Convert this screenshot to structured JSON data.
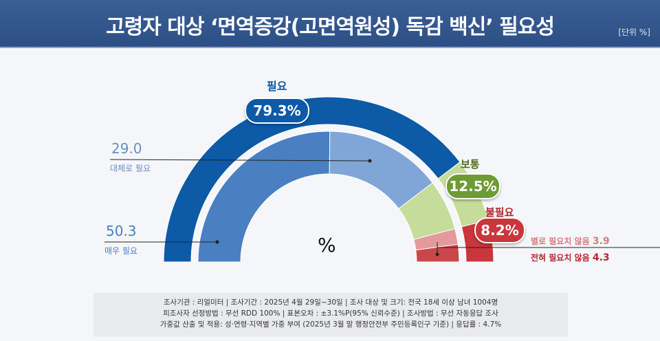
{
  "title": "고령자 대상 ‘면역증강(고면역원성) 독감 백신’ 필요성",
  "unit": "[단위 %]",
  "center_symbol": "%",
  "chart_data": {
    "type": "pie",
    "variant": "half-donut, two rings",
    "outer": [
      {
        "name": "필요",
        "value": 79.3,
        "label": "79.3%",
        "color": "#0d5aa7"
      },
      {
        "name": "보통",
        "value": 12.5,
        "label": "12.5%",
        "color": "#c5dc9a"
      },
      {
        "name": "불필요",
        "value": 8.2,
        "label": "8.2%",
        "color": "#c9363c"
      }
    ],
    "inner": [
      {
        "name": "매우 필요",
        "value": 50.3,
        "label": "50.3",
        "color": "#4a7fc1"
      },
      {
        "name": "대체로 필요",
        "value": 29.0,
        "label": "29.0",
        "color": "#7fa6d6"
      },
      {
        "name": "보통",
        "value": 12.5,
        "color": "#c5dc9a"
      },
      {
        "name": "별로 필요치 않음",
        "value": 3.9,
        "label": "3.9",
        "color": "#e49a9c"
      },
      {
        "name": "전혀 필요치 않음",
        "value": 4.3,
        "label": "4.3",
        "color": "#c9474b"
      }
    ]
  },
  "notes": [
    "조사기관 : 리얼미터 | 조사기간 : 2025년 4월 29일~30일 | 조사 대상 및 크기: 전국 18세 이상 남녀 1004명",
    "피조사자 선정방법 : 무선 RDD 100% | 표본오차 : ±3.1%P(95% 신뢰수준) | 조사방법 : 무선 자동응답 조사",
    "가중값 산출 및 적용: 성·연령·지역별 가중 부여 (2025년 3월 말 행정안전부 주민등록인구 기준) | 응답률 : 4.7%"
  ]
}
